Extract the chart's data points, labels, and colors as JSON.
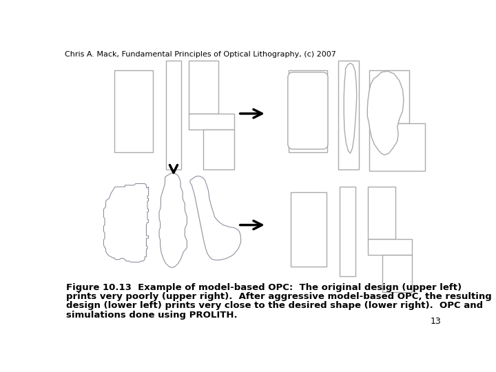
{
  "header": "Chris A. Mack, Fundamental Principles of Optical Lithography, (c) 2007",
  "caption": "Figure 10.13  Example of model-based OPC:  The original design (upper left)\nprints very poorly (upper right).  After aggressive model-based OPC, the resulting\ndesign (lower left) prints very close to the desired shape (lower right).  OPC and\nsimulations done using PROLITH.",
  "page_number": "13",
  "bg_color": "#ffffff",
  "outline_color": "#aaaaaa",
  "dark_outline": "#888888",
  "lw": 1.0,
  "header_fontsize": 8,
  "caption_fontsize": 9.5,
  "page_fontsize": 9
}
